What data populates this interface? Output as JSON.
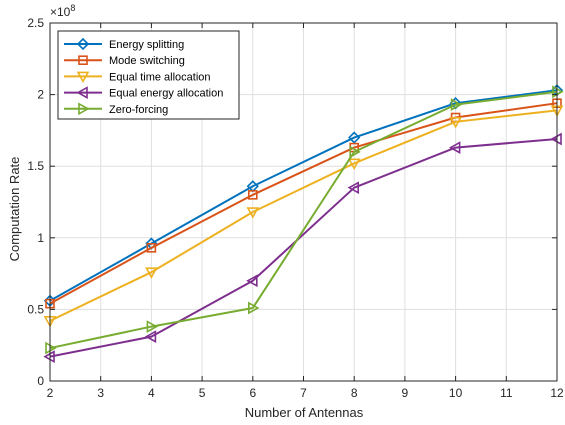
{
  "chart_data": {
    "type": "line",
    "xlabel": "Number of Antennas",
    "ylabel": "Computation Rate",
    "y_exponent_label": "×10",
    "y_exponent_power": "8",
    "y_scale": 100000000,
    "xlim": [
      2,
      12
    ],
    "ylim": [
      0,
      250000000
    ],
    "x_ticks": [
      2,
      3,
      4,
      5,
      6,
      7,
      8,
      9,
      10,
      11,
      12
    ],
    "y_ticks": [
      0,
      50000000,
      100000000,
      150000000,
      200000000,
      250000000
    ],
    "y_tick_labels": [
      "0",
      "0.5",
      "1",
      "1.5",
      "2",
      "2.5"
    ],
    "grid": true,
    "legend_position": "top-left",
    "x": [
      2,
      4,
      6,
      8,
      10,
      12
    ],
    "series": [
      {
        "name": "Energy splitting",
        "color": "#0072BD",
        "marker": "diamond",
        "values": [
          56000000,
          96000000,
          136000000,
          170000000,
          194000000,
          203000000
        ]
      },
      {
        "name": "Mode switching",
        "color": "#D95319",
        "marker": "square",
        "values": [
          54000000,
          93000000,
          130000000,
          163000000,
          184000000,
          194000000
        ]
      },
      {
        "name": "Equal time allocation",
        "color": "#EDB120",
        "marker": "triangle-down",
        "values": [
          42000000,
          76000000,
          118000000,
          152000000,
          181000000,
          189000000
        ]
      },
      {
        "name": "Equal energy allocation",
        "color": "#7E2F8E",
        "marker": "triangle-left",
        "values": [
          17000000,
          31000000,
          70000000,
          135000000,
          163000000,
          169000000
        ]
      },
      {
        "name": "Zero-forcing",
        "color": "#77AC30",
        "marker": "triangle-right",
        "values": [
          23000000,
          38000000,
          51000000,
          160000000,
          193000000,
          202000000
        ]
      }
    ]
  }
}
